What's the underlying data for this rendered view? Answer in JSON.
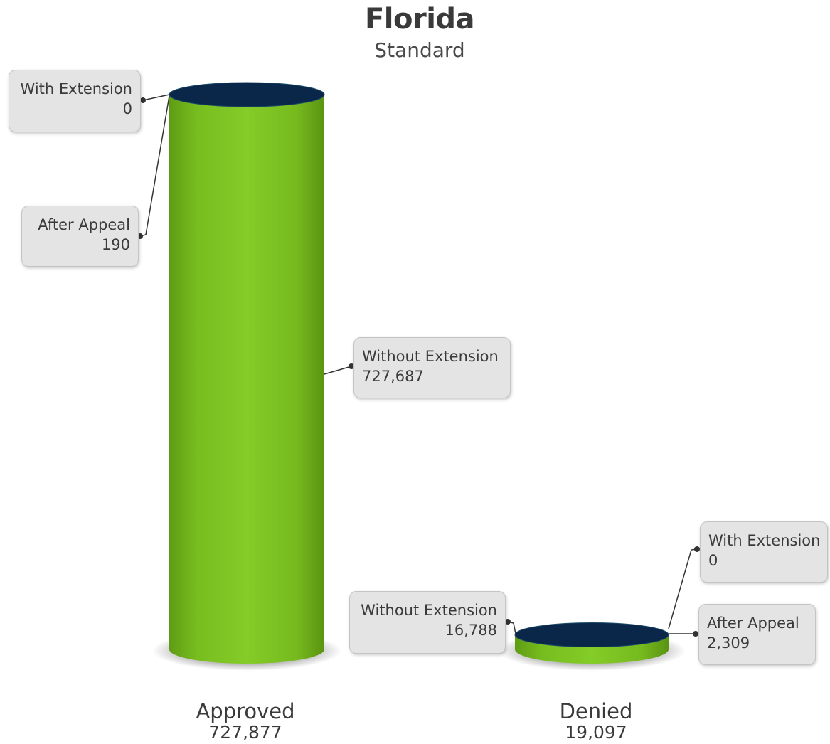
{
  "chart_data": {
    "type": "bar",
    "title": "Florida",
    "subtitle": "Standard",
    "categories": [
      {
        "label": "Approved",
        "total": "727,877",
        "total_value": 727877
      },
      {
        "label": "Denied",
        "total": "19,097",
        "total_value": 19097
      }
    ],
    "segments": {
      "approved": {
        "with_extension": {
          "label": "With Extension",
          "value": "0"
        },
        "after_appeal": {
          "label": "After Appeal",
          "value": "190"
        },
        "without_extension": {
          "label": "Without Extension",
          "value": "727,687"
        }
      },
      "denied": {
        "without_extension": {
          "label": "Without Extension",
          "value": "16,788"
        },
        "with_extension": {
          "label": "With Extension",
          "value": "0"
        },
        "after_appeal": {
          "label": "After Appeal",
          "value": "2,309"
        }
      }
    },
    "ylim": [
      0,
      727877
    ],
    "colors": {
      "body": "#7dc421",
      "cap": "#0a2648",
      "callout_bg": "#e4e4e4"
    }
  }
}
